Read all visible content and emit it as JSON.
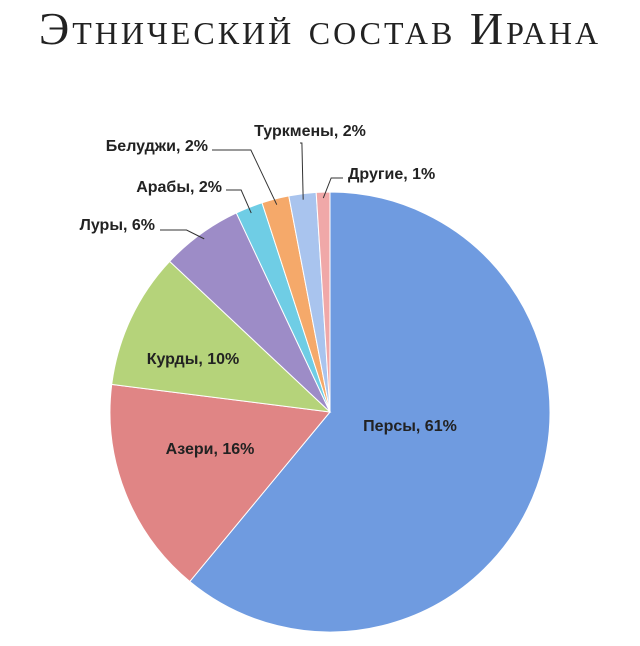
{
  "chart_data": {
    "type": "pie",
    "title": "Этнический состав Ирана",
    "values": [
      61,
      16,
      10,
      6,
      2,
      2,
      2,
      1
    ],
    "value_labels": [
      "Персы, 61%",
      "Азери, 16%",
      "Курды, 10%",
      "Луры, 6%",
      "Арабы, 2%",
      "Белуджи, 2%",
      "Туркмены, 2%",
      "Другие, 1%"
    ],
    "colors": [
      "#6f9be0",
      "#e08585",
      "#b5d37a",
      "#9d8cc7",
      "#6fcde5",
      "#f5a96a",
      "#a9c4ee",
      "#f0a8a8"
    ]
  }
}
